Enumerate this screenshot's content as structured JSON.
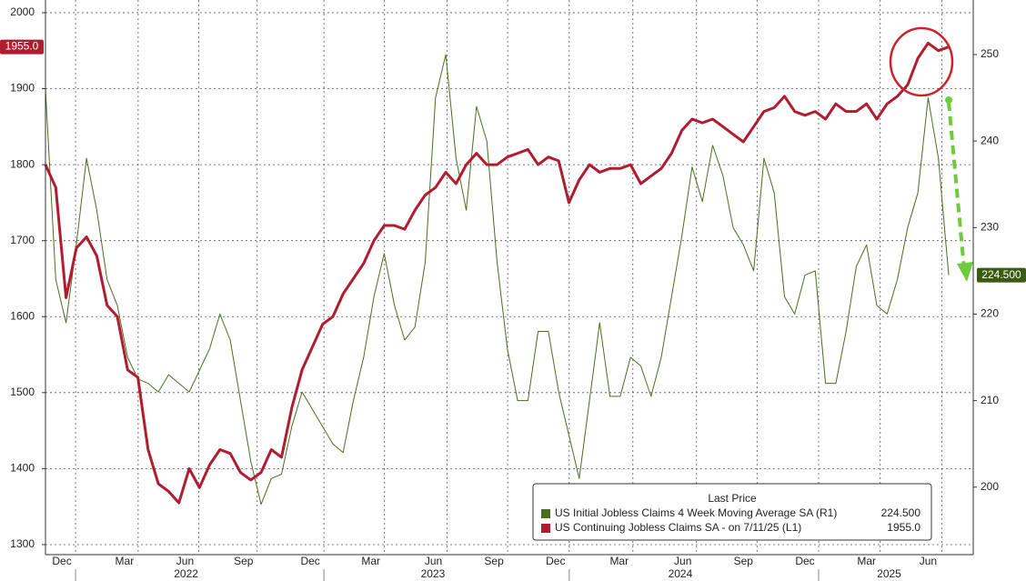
{
  "chart_data": {
    "type": "line",
    "xlim": [
      0,
      88
    ],
    "xticks": [
      {
        "value": 1.6,
        "label": "Dec"
      },
      {
        "value": 7.7,
        "label": "Mar"
      },
      {
        "value": 13.6,
        "label": "Jun"
      },
      {
        "value": 19.3,
        "label": "Sep"
      },
      {
        "value": 25.8,
        "label": "Dec"
      },
      {
        "value": 31.7,
        "label": "Mar"
      },
      {
        "value": 37.8,
        "label": "Jun"
      },
      {
        "value": 43.7,
        "label": "Sep"
      },
      {
        "value": 49.7,
        "label": "Dec"
      },
      {
        "value": 55.9,
        "label": "Mar"
      },
      {
        "value": 62.1,
        "label": "Jun"
      },
      {
        "value": 68,
        "label": "Sep"
      },
      {
        "value": 74,
        "label": "Dec"
      },
      {
        "value": 80,
        "label": "Mar"
      },
      {
        "value": 86,
        "label": "Jun"
      }
    ],
    "year_labels": [
      "2022",
      "2023",
      "2024",
      "2025"
    ],
    "ylim": [
      1286.8,
      2016.7
    ],
    "yticks": [
      1300,
      1400,
      1500,
      1600,
      1700,
      1800,
      1900,
      2000
    ],
    "y2lim": [
      192.2,
      256.3
    ],
    "y2ticks": [
      200,
      210,
      220,
      230,
      240,
      250
    ],
    "grid": true,
    "legend_title": "Last Price",
    "series": [
      {
        "name": "US Initial Jobless Claims 4 Week Moving Average SA  (R1)",
        "color": "#4a6e1e",
        "axis": "y2",
        "last_label": "224.500",
        "values": [
          246,
          224,
          219,
          228,
          238,
          232,
          224,
          221,
          215,
          212.5,
          212,
          211,
          213,
          212,
          211,
          213.5,
          216,
          220,
          217,
          210,
          203,
          198,
          201,
          201.5,
          207,
          211,
          209,
          207,
          205,
          204,
          210,
          215,
          222,
          227,
          221,
          217,
          218.5,
          226,
          245,
          250,
          238,
          232,
          244,
          240,
          226,
          216,
          210,
          210,
          218,
          218,
          211,
          206,
          201,
          210,
          219,
          210.5,
          210.5,
          215,
          214,
          210.5,
          215,
          222,
          229,
          237,
          233,
          239.5,
          236,
          230,
          228,
          225,
          238,
          234,
          222,
          220,
          224.5,
          225,
          212,
          212,
          218,
          225.5,
          228,
          221,
          220,
          224,
          230,
          234,
          245,
          238,
          224.5
        ]
      },
      {
        "name": "US Continuing Jobless Claims SA -   on 7/11/25  (L1)",
        "color": "#b01c30",
        "axis": "y",
        "last_label": "1955.0",
        "values": [
          1800,
          1770,
          1625,
          1690,
          1705,
          1680,
          1615,
          1600,
          1530,
          1520,
          1425,
          1380,
          1370,
          1355,
          1400,
          1375,
          1405,
          1425,
          1420,
          1395,
          1385,
          1395,
          1425,
          1415,
          1480,
          1530,
          1560,
          1590,
          1600,
          1630,
          1650,
          1670,
          1700,
          1720,
          1720,
          1715,
          1740,
          1760,
          1770,
          1790,
          1775,
          1800,
          1815,
          1800,
          1800,
          1810,
          1815,
          1820,
          1800,
          1810,
          1805,
          1750,
          1780,
          1800,
          1790,
          1795,
          1795,
          1800,
          1775,
          1785,
          1795,
          1815,
          1845,
          1860,
          1855,
          1860,
          1850,
          1840,
          1830,
          1850,
          1870,
          1875,
          1890,
          1870,
          1865,
          1870,
          1860,
          1880,
          1870,
          1870,
          1880,
          1860,
          1880,
          1890,
          1905,
          1940,
          1960,
          1950,
          1955
        ]
      }
    ]
  }
}
